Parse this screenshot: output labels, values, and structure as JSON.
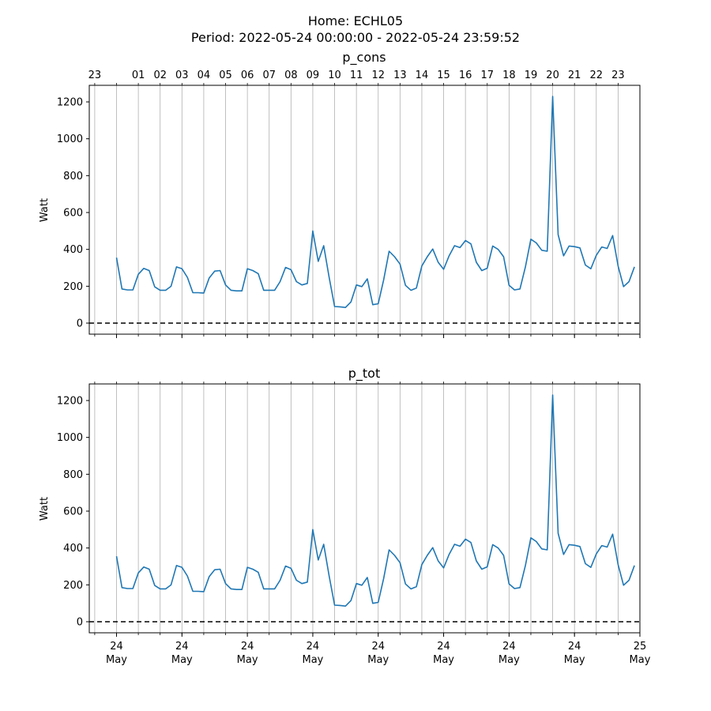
{
  "figure": {
    "title_line1": "Home: ECHL05",
    "title_line2": "Period: 2022-05-24 00:00:00 - 2022-05-24 23:59:52"
  },
  "colors": {
    "series": "#1f77b4",
    "grid": "#b0b0b0",
    "zero_line": "#000000"
  },
  "chart_data": [
    {
      "type": "line",
      "title": "p_cons",
      "xlabel": "",
      "ylabel": "Watt",
      "ylim": [
        -60,
        1290
      ],
      "xlim": [
        -1.25,
        24.0
      ],
      "yticks": [
        0,
        200,
        400,
        600,
        800,
        1000,
        1200
      ],
      "zero_line": "dashed",
      "grid": "vertical lines at each hour",
      "top_axis_hours": [
        "23",
        "01",
        "02",
        "03",
        "04",
        "05",
        "06",
        "07",
        "08",
        "09",
        "10",
        "11",
        "12",
        "13",
        "14",
        "15",
        "16",
        "17",
        "18",
        "19",
        "20",
        "21",
        "22",
        "23"
      ],
      "series": [
        {
          "x": [
            0,
            0.25,
            0.5,
            0.75,
            1,
            1.25,
            1.5,
            1.75,
            2,
            2.25,
            2.5,
            2.75,
            3,
            3.25,
            3.5,
            3.75,
            4,
            4.25,
            4.5,
            4.75,
            5,
            5.25,
            5.5,
            5.75,
            6,
            6.25,
            6.5,
            6.75,
            7,
            7.25,
            7.5,
            7.75,
            8,
            8.25,
            8.5,
            8.75,
            9,
            9.25,
            9.5,
            9.75,
            10,
            10.25,
            10.5,
            10.75,
            11,
            11.25,
            11.5,
            11.75,
            12,
            12.25,
            12.5,
            12.75,
            13,
            13.25,
            13.5,
            13.75,
            14,
            14.25,
            14.5,
            14.75,
            15,
            15.25,
            15.5,
            15.75,
            16,
            16.25,
            16.5,
            16.75,
            17,
            17.25,
            17.5,
            17.75,
            18,
            18.25,
            18.5,
            18.75,
            19,
            19.25,
            19.5,
            19.75,
            20,
            20.25,
            20.5,
            20.75,
            21,
            21.25,
            21.5,
            21.75,
            22,
            22.25,
            22.5,
            22.75,
            23,
            23.25,
            23.5,
            23.75
          ],
          "y": [
            355,
            185,
            180,
            180,
            265,
            297,
            285,
            197,
            178,
            178,
            200,
            305,
            295,
            248,
            165,
            165,
            163,
            245,
            282,
            285,
            207,
            178,
            175,
            175,
            295,
            285,
            268,
            178,
            178,
            178,
            225,
            302,
            290,
            225,
            207,
            215,
            500,
            335,
            420,
            248,
            90,
            88,
            85,
            115,
            207,
            198,
            240,
            100,
            105,
            235,
            390,
            360,
            320,
            205,
            178,
            190,
            310,
            360,
            402,
            330,
            292,
            365,
            420,
            410,
            448,
            430,
            330,
            285,
            298,
            418,
            400,
            360,
            205,
            180,
            185,
            305,
            455,
            435,
            395,
            390,
            1230,
            480,
            365,
            418,
            415,
            408,
            315,
            295,
            368,
            413,
            405,
            475,
            310,
            198,
            225,
            305
          ]
        }
      ]
    },
    {
      "type": "line",
      "title": "p_tot",
      "xlabel": "",
      "ylabel": "Watt",
      "ylim": [
        -60,
        1290
      ],
      "xlim": [
        -1.25,
        24.0
      ],
      "yticks": [
        0,
        200,
        400,
        600,
        800,
        1000,
        1200
      ],
      "zero_line": "dashed",
      "grid": "vertical lines at each hour",
      "bottom_axis_labels": [
        {
          "x": 0,
          "day": "24",
          "month": "May"
        },
        {
          "x": 3,
          "day": "24",
          "month": "May"
        },
        {
          "x": 6,
          "day": "24",
          "month": "May"
        },
        {
          "x": 9,
          "day": "24",
          "month": "May"
        },
        {
          "x": 12,
          "day": "24",
          "month": "May"
        },
        {
          "x": 15,
          "day": "24",
          "month": "May"
        },
        {
          "x": 18,
          "day": "24",
          "month": "May"
        },
        {
          "x": 21,
          "day": "24",
          "month": "May"
        },
        {
          "x": 24,
          "day": "25",
          "month": "May"
        }
      ],
      "series": [
        {
          "x": [
            0,
            0.25,
            0.5,
            0.75,
            1,
            1.25,
            1.5,
            1.75,
            2,
            2.25,
            2.5,
            2.75,
            3,
            3.25,
            3.5,
            3.75,
            4,
            4.25,
            4.5,
            4.75,
            5,
            5.25,
            5.5,
            5.75,
            6,
            6.25,
            6.5,
            6.75,
            7,
            7.25,
            7.5,
            7.75,
            8,
            8.25,
            8.5,
            8.75,
            9,
            9.25,
            9.5,
            9.75,
            10,
            10.25,
            10.5,
            10.75,
            11,
            11.25,
            11.5,
            11.75,
            12,
            12.25,
            12.5,
            12.75,
            13,
            13.25,
            13.5,
            13.75,
            14,
            14.25,
            14.5,
            14.75,
            15,
            15.25,
            15.5,
            15.75,
            16,
            16.25,
            16.5,
            16.75,
            17,
            17.25,
            17.5,
            17.75,
            18,
            18.25,
            18.5,
            18.75,
            19,
            19.25,
            19.5,
            19.75,
            20,
            20.25,
            20.5,
            20.75,
            21,
            21.25,
            21.5,
            21.75,
            22,
            22.25,
            22.5,
            22.75,
            23,
            23.25,
            23.5,
            23.75
          ],
          "y": [
            355,
            185,
            180,
            180,
            265,
            297,
            285,
            197,
            178,
            178,
            200,
            305,
            295,
            248,
            165,
            165,
            163,
            245,
            282,
            285,
            207,
            178,
            175,
            175,
            295,
            285,
            268,
            178,
            178,
            178,
            225,
            302,
            290,
            225,
            207,
            215,
            500,
            335,
            420,
            248,
            90,
            88,
            85,
            115,
            207,
            198,
            240,
            100,
            105,
            235,
            390,
            360,
            320,
            205,
            178,
            190,
            310,
            360,
            402,
            330,
            292,
            365,
            420,
            410,
            448,
            430,
            330,
            285,
            298,
            418,
            400,
            360,
            205,
            180,
            185,
            305,
            455,
            435,
            395,
            390,
            1230,
            480,
            365,
            418,
            415,
            408,
            315,
            295,
            368,
            413,
            405,
            475,
            310,
            198,
            225,
            305
          ]
        }
      ]
    }
  ]
}
